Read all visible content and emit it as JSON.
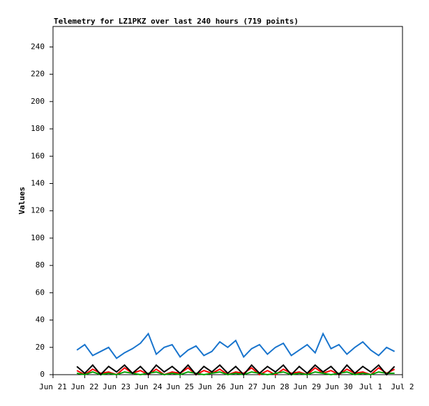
{
  "chart_data": {
    "type": "line",
    "title": "Telemetry for LZ1PKZ over last 240 hours (719 points)",
    "y_label": "Values",
    "x": [
      0.75,
      1,
      1.25,
      1.5,
      1.75,
      2,
      2.25,
      2.5,
      2.75,
      3,
      3.25,
      3.5,
      3.75,
      4,
      4.25,
      4.5,
      4.75,
      5,
      5.25,
      5.5,
      5.75,
      6,
      6.25,
      6.5,
      6.75,
      7,
      7.25,
      7.5,
      7.75,
      8,
      8.25,
      8.5,
      8.75,
      9,
      9.25,
      9.5,
      9.75,
      10,
      10.25,
      10.5,
      10.75
    ],
    "series": [
      {
        "color": "#1874cd",
        "values": [
          18,
          22,
          14,
          17,
          20,
          12,
          16,
          19,
          23,
          30,
          15,
          20,
          22,
          13,
          18,
          21,
          14,
          17,
          24,
          20,
          25,
          13,
          19,
          22,
          15,
          20,
          23,
          14,
          18,
          22,
          16,
          30,
          19,
          22,
          15,
          20,
          24,
          18,
          14,
          20,
          17
        ]
      },
      {
        "color": "#ff0000",
        "values": [
          3,
          0,
          4,
          1,
          2,
          0,
          5,
          1,
          3,
          0,
          4,
          0,
          2,
          1,
          5,
          0,
          3,
          1,
          4,
          0,
          2,
          1,
          5,
          0,
          3,
          0,
          4,
          1,
          2,
          0,
          5,
          1,
          3,
          0,
          4,
          1,
          2,
          0,
          5,
          1,
          4
        ]
      },
      {
        "color": "#00a000",
        "values": [
          1,
          0,
          2,
          0,
          1,
          0,
          2,
          1,
          0,
          1,
          2,
          0,
          1,
          0,
          2,
          1,
          0,
          1,
          2,
          0,
          1,
          0,
          2,
          1,
          0,
          1,
          2,
          0,
          1,
          0,
          2,
          1,
          0,
          1,
          2,
          0,
          1,
          0,
          2,
          1,
          1
        ]
      },
      {
        "color": "#000000",
        "values": [
          6,
          1,
          7,
          0,
          6,
          2,
          7,
          1,
          6,
          0,
          7,
          2,
          6,
          1,
          7,
          0,
          6,
          2,
          7,
          1,
          6,
          0,
          7,
          1,
          6,
          2,
          7,
          0,
          6,
          1,
          7,
          2,
          6,
          0,
          7,
          1,
          6,
          2,
          7,
          0,
          6
        ]
      }
    ],
    "xlim": [
      0,
      11
    ],
    "xticks": [
      {
        "value": 0,
        "label": "Jun 21"
      },
      {
        "value": 1,
        "label": "Jun 22"
      },
      {
        "value": 2,
        "label": "Jun 23"
      },
      {
        "value": 3,
        "label": "Jun 24"
      },
      {
        "value": 4,
        "label": "Jun 25"
      },
      {
        "value": 5,
        "label": "Jun 26"
      },
      {
        "value": 6,
        "label": "Jun 27"
      },
      {
        "value": 7,
        "label": "Jun 28"
      },
      {
        "value": 8,
        "label": "Jun 29"
      },
      {
        "value": 9,
        "label": "Jun 30"
      },
      {
        "value": 10,
        "label": "Jul 1"
      },
      {
        "value": 11,
        "label": "Jul 2"
      }
    ],
    "ylim": [
      0,
      255
    ],
    "yticks": [
      0,
      20,
      40,
      60,
      80,
      100,
      120,
      140,
      160,
      180,
      200,
      220,
      240
    ],
    "grid": false
  }
}
